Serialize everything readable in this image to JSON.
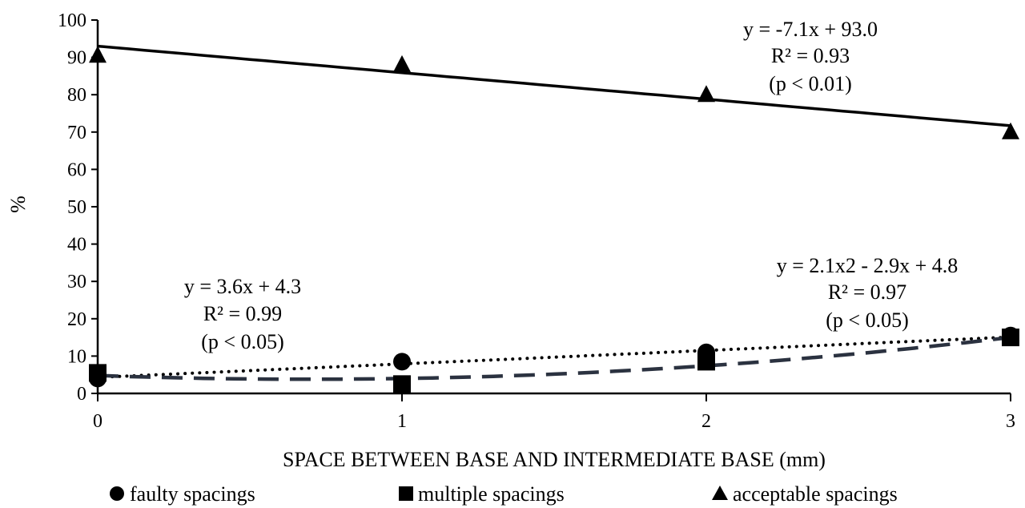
{
  "chart_data": {
    "type": "scatter",
    "title": "",
    "xlabel": "SPACE BETWEEN BASE AND INTERMEDIATE BASE (mm)",
    "ylabel": "%",
    "xlim": [
      0,
      3
    ],
    "ylim": [
      0,
      100
    ],
    "x_ticks": [
      "0",
      "1",
      "2",
      "3"
    ],
    "y_ticks": [
      "0",
      "10",
      "20",
      "30",
      "40",
      "50",
      "60",
      "70",
      "80",
      "90",
      "100"
    ],
    "x": [
      0,
      1,
      2,
      3
    ],
    "grid": false,
    "legend_position": "bottom",
    "series": [
      {
        "name": "faulty spacings",
        "marker": "circle",
        "values": [
          4,
          8.5,
          11,
          15.5
        ]
      },
      {
        "name": "multiple spacings",
        "marker": "square",
        "values": [
          5.5,
          2.5,
          8.5,
          15
        ]
      },
      {
        "name": "acceptable spacings",
        "marker": "triangle",
        "values": [
          90.5,
          88,
          80,
          70
        ]
      }
    ],
    "trendlines": [
      {
        "series": "acceptable spacings",
        "style": "solid",
        "equation": "y = -7.1x + 93.0",
        "r2": "R² = 0.93",
        "p": "(p < 0.01)"
      },
      {
        "series": "faulty spacings",
        "style": "dotted",
        "equation": "y = 3.6x + 4.3",
        "r2": "R² = 0.99",
        "p": "(p < 0.05)"
      },
      {
        "series": "multiple spacings",
        "style": "dashed",
        "equation": "y = 2.1x2 - 2.9x + 4.8",
        "r2": "R² = 0.97",
        "p": "(p < 0.05)"
      }
    ],
    "colors": {
      "axis": "#000000",
      "dashed": "#2b3240",
      "marker": "#000000"
    }
  }
}
